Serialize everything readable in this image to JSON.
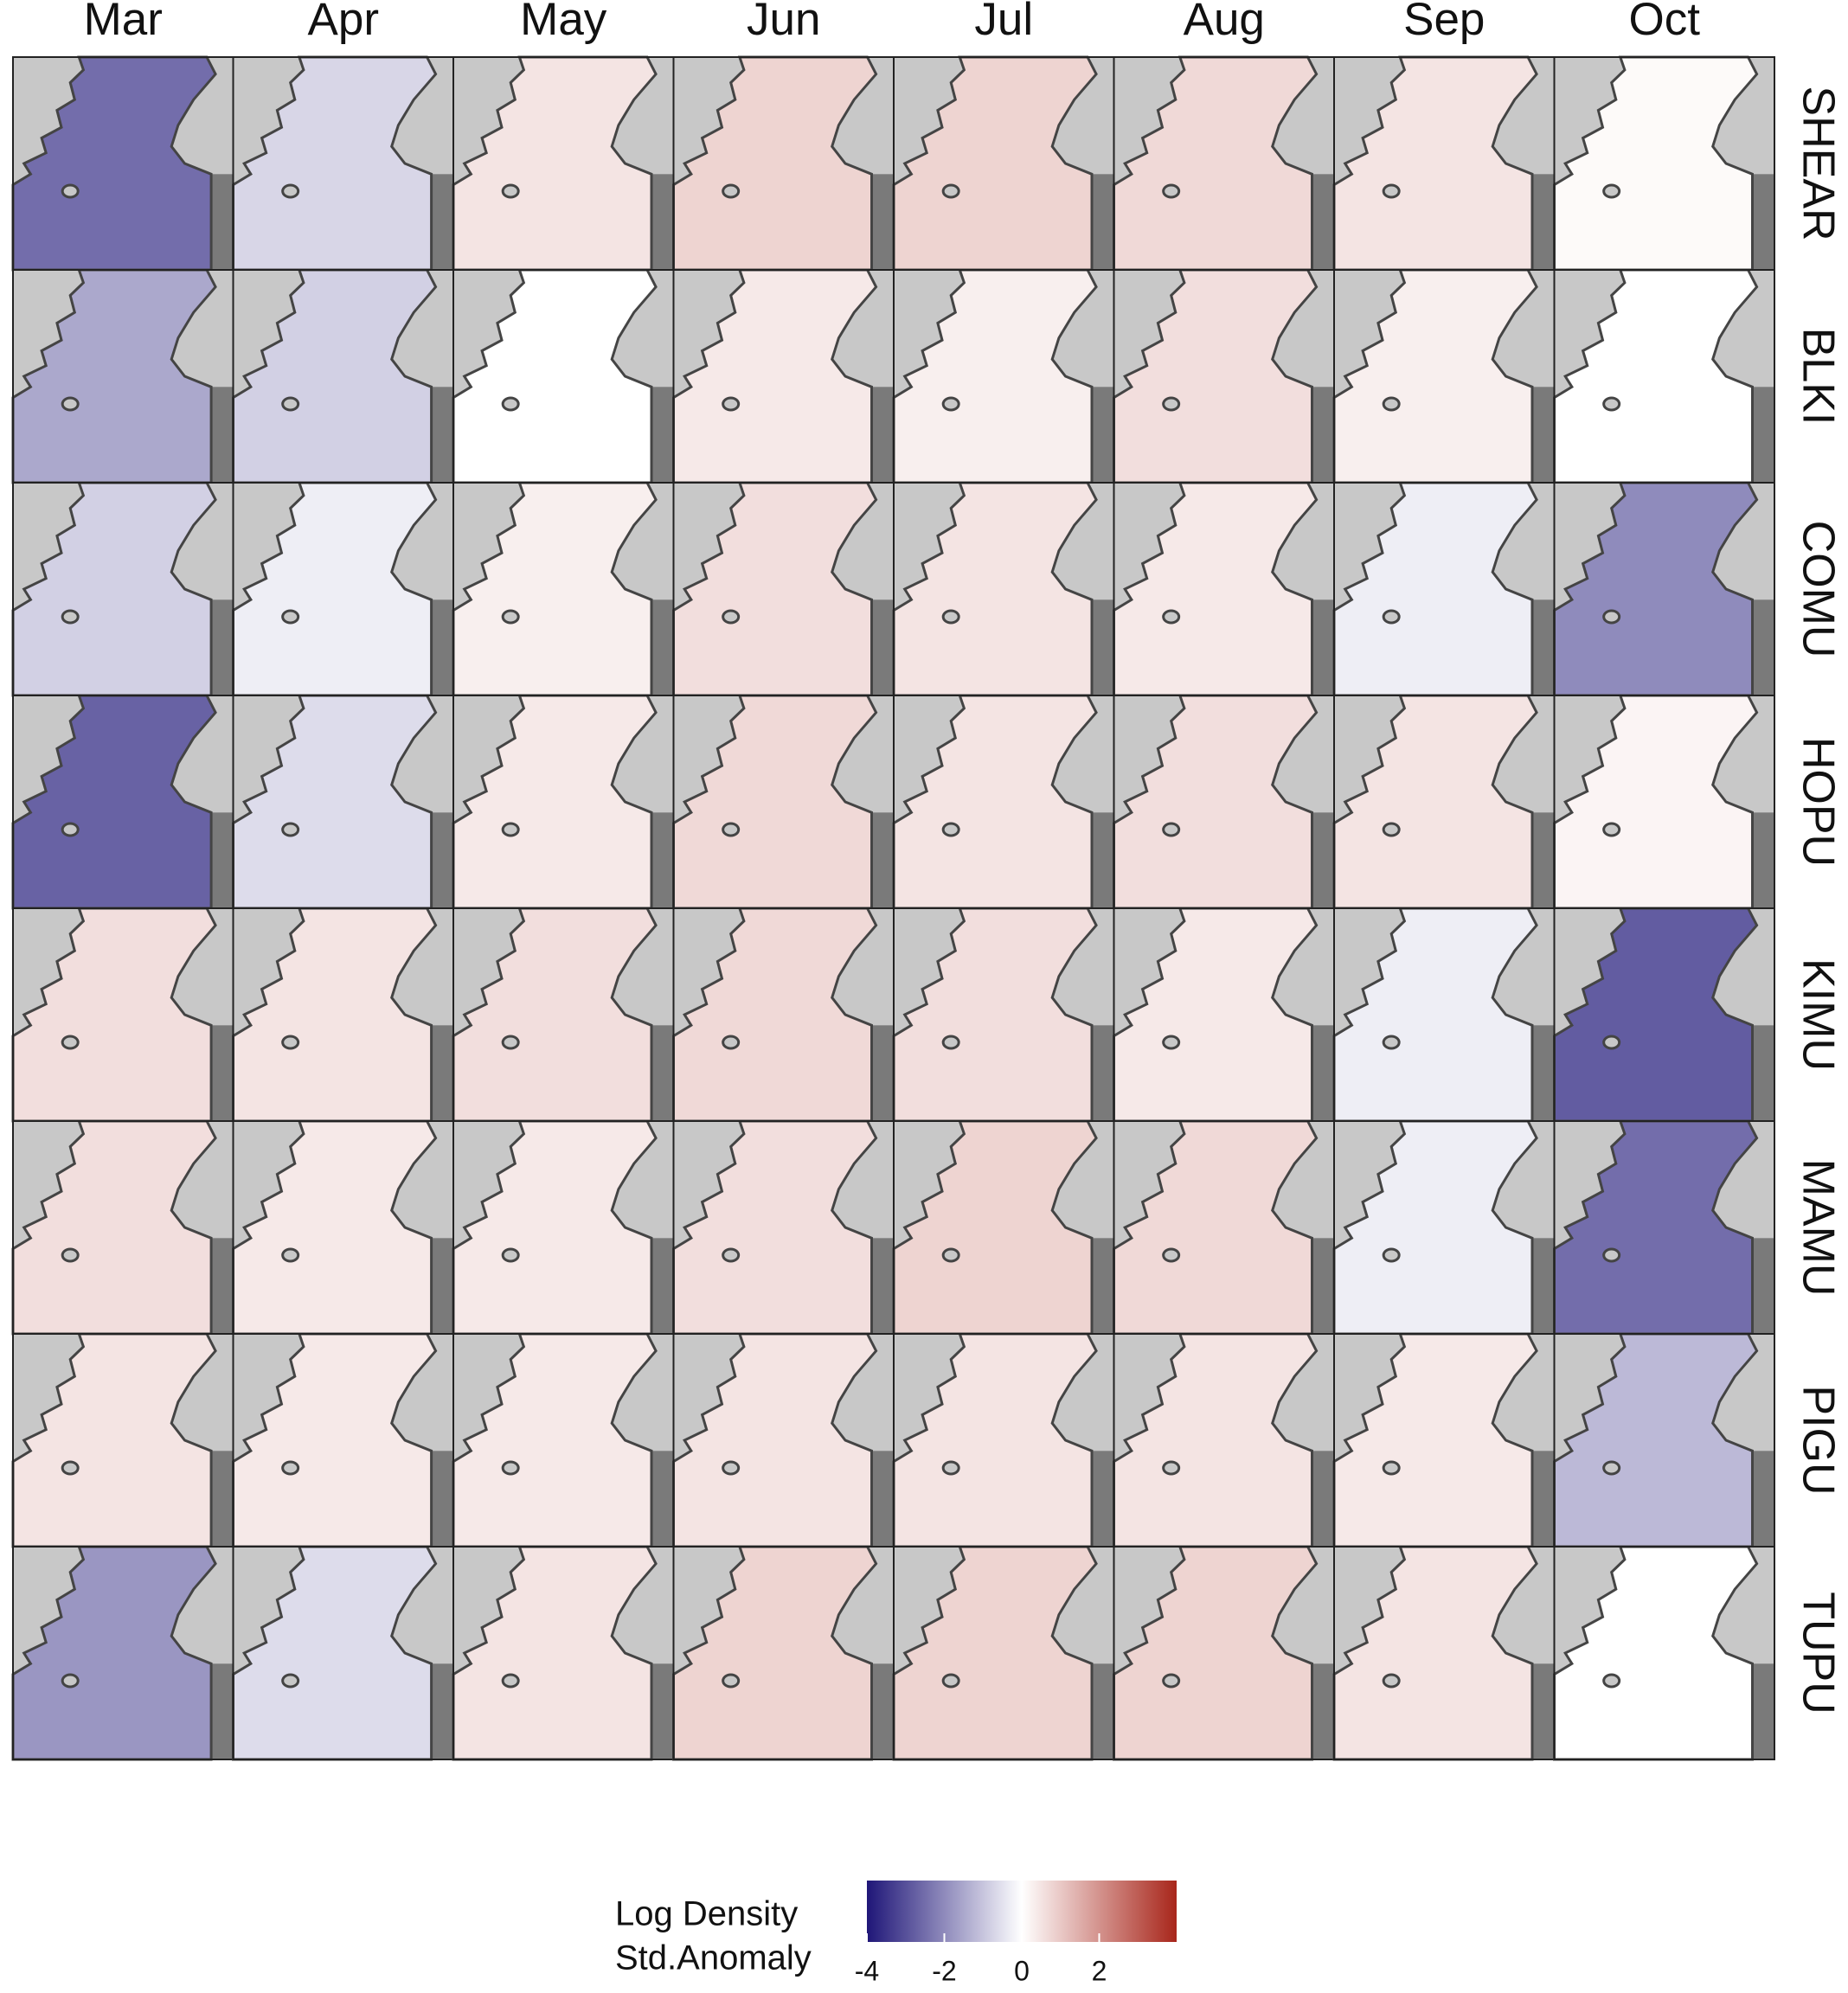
{
  "chart_data": {
    "type": "heatmap",
    "columns": [
      "Mar",
      "Apr",
      "May",
      "Jun",
      "Jul",
      "Aug",
      "Sep",
      "Oct"
    ],
    "rows": [
      "SHEAR",
      "BLKI",
      "COMU",
      "HOPU",
      "KIMU",
      "MAMU",
      "PIGU",
      "TUPU"
    ],
    "values": [
      [
        -2.5,
        -0.7,
        0.5,
        0.8,
        0.8,
        0.7,
        0.5,
        0.1
      ],
      [
        -1.5,
        -0.8,
        0,
        0.4,
        0.3,
        0.6,
        0.3,
        0
      ],
      [
        -0.8,
        -0.3,
        0.3,
        0.6,
        0.5,
        0.4,
        -0.3,
        -2
      ],
      [
        -2.7,
        -0.6,
        0.4,
        0.7,
        0.5,
        0.6,
        0.5,
        0.2
      ],
      [
        0.6,
        0.5,
        0.6,
        0.7,
        0.6,
        0.4,
        -0.3,
        -2.8
      ],
      [
        0.6,
        0.4,
        0.4,
        0.6,
        0.8,
        0.7,
        -0.3,
        -2.5
      ],
      [
        0.5,
        0.4,
        0.4,
        0.5,
        0.5,
        0.5,
        0.4,
        -1.2
      ],
      [
        -1.8,
        -0.6,
        0.5,
        0.8,
        0.8,
        0.8,
        0.5,
        0
      ]
    ],
    "colorbar": {
      "title": [
        "Log Density",
        "Std.Anomaly"
      ],
      "lim": [
        -4,
        4
      ],
      "ticks": [
        -4,
        -2,
        0,
        2
      ],
      "colors": [
        "#1f1678",
        "#ffffff",
        "#a8261b"
      ]
    }
  }
}
